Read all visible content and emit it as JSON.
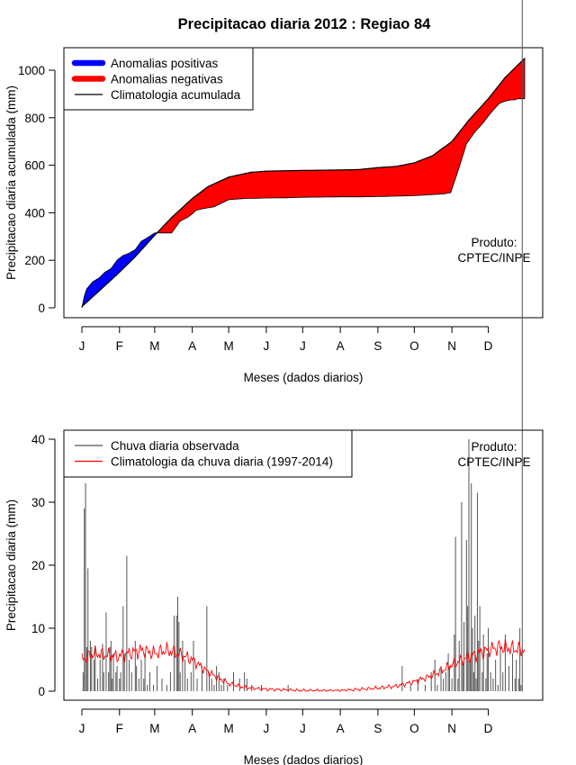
{
  "page": {
    "title": "Precipitacao diaria 2012 : Regiao 84"
  },
  "colors": {
    "positive": "#0000FF",
    "negative": "#FF0000",
    "climatology_line": "#000000",
    "bars": "#555555",
    "clim_daily": "#FF0000"
  },
  "chart_data": [
    {
      "type": "area",
      "title": "Precipitacao diaria 2012 : Regiao 84",
      "xlabel": "Meses (dados diarios)",
      "ylabel": "Precipitacao diaria acumulada (mm)",
      "xlim": [
        1,
        366
      ],
      "ylim": [
        0,
        1050
      ],
      "yticks": [
        0,
        200,
        400,
        600,
        800,
        1000
      ],
      "month_ticks": [
        1,
        32,
        61,
        92,
        122,
        153,
        183,
        214,
        245,
        275,
        306,
        336
      ],
      "month_labels": [
        "J",
        "F",
        "M",
        "A",
        "M",
        "J",
        "J",
        "A",
        "S",
        "O",
        "N",
        "D"
      ],
      "legend": [
        {
          "label": "Anomalias positivas",
          "kind": "thick",
          "color_key": "positive"
        },
        {
          "label": "Anomalias negativas",
          "kind": "thick",
          "color_key": "negative"
        },
        {
          "label": "Climatologia acumulada",
          "kind": "line",
          "color_key": "climatology_line"
        }
      ],
      "legend_position": "top-left",
      "annotation": [
        "Produto:",
        "CPTEC/INPE"
      ],
      "climatology_cumulative": {
        "day": [
          1,
          15,
          30,
          45,
          60,
          75,
          92,
          105,
          122,
          140,
          153,
          170,
          183,
          200,
          214,
          230,
          245,
          260,
          275,
          290,
          306,
          320,
          336,
          350,
          366
        ],
        "value": [
          5,
          70,
          140,
          215,
          300,
          380,
          460,
          510,
          550,
          570,
          575,
          577,
          578,
          579,
          580,
          582,
          590,
          595,
          610,
          640,
          700,
          790,
          880,
          970,
          1050
        ]
      },
      "observed_cumulative": {
        "day": [
          1,
          3,
          5,
          10,
          15,
          20,
          25,
          30,
          35,
          40,
          45,
          50,
          55,
          61,
          66,
          75,
          82,
          88,
          92,
          95,
          99,
          104,
          110,
          116,
          122,
          135,
          153,
          170,
          183,
          200,
          214,
          230,
          245,
          260,
          275,
          285,
          295,
          300,
          305,
          310,
          318,
          325,
          332,
          338,
          345,
          350,
          355,
          358,
          360,
          364,
          366
        ],
        "value": [
          0,
          50,
          80,
          110,
          125,
          150,
          165,
          200,
          220,
          230,
          245,
          280,
          295,
          315,
          315,
          315,
          365,
          380,
          395,
          410,
          415,
          420,
          425,
          440,
          455,
          460,
          462,
          463,
          465,
          466,
          467,
          467,
          468,
          470,
          472,
          475,
          478,
          480,
          485,
          560,
          690,
          740,
          780,
          820,
          860,
          870,
          875,
          875,
          880,
          880,
          880
        ]
      }
    },
    {
      "type": "bar",
      "title": "",
      "xlabel": "Meses (dados diarios)",
      "ylabel": "Precipitacao diaria (mm)",
      "xlim": [
        1,
        366
      ],
      "ylim": [
        0,
        40
      ],
      "yticks": [
        0,
        10,
        20,
        30,
        40
      ],
      "month_ticks": [
        1,
        32,
        61,
        92,
        122,
        153,
        183,
        214,
        245,
        275,
        306,
        336
      ],
      "month_labels": [
        "J",
        "F",
        "M",
        "A",
        "M",
        "J",
        "J",
        "A",
        "S",
        "O",
        "N",
        "D"
      ],
      "legend": [
        {
          "label": "Chuva diaria observada",
          "kind": "line",
          "color_key": "bars"
        },
        {
          "label": "Climatologia da chuva diaria (1997-2014)",
          "kind": "line",
          "color_key": "clim_daily"
        }
      ],
      "legend_position": "top-left",
      "annotation": [
        "Produto:",
        "CPTEC/INPE"
      ],
      "observed_daily": {
        "day": [
          2,
          3,
          4,
          5,
          6,
          8,
          9,
          11,
          12,
          14,
          16,
          18,
          19,
          21,
          23,
          24,
          25,
          26,
          27,
          29,
          30,
          32,
          33,
          35,
          36,
          38,
          40,
          42,
          45,
          46,
          48,
          50,
          52,
          53,
          55,
          57,
          60,
          63,
          67,
          71,
          74,
          77,
          79,
          80,
          81,
          82,
          84,
          86,
          88,
          91,
          93,
          96,
          100,
          104,
          106,
          108,
          110,
          112,
          114,
          116,
          118,
          121,
          126,
          131,
          135,
          137,
          141,
          149,
          171,
          265,
          272,
          278,
          284,
          289,
          292,
          294,
          297,
          299,
          301,
          303,
          304,
          306,
          308,
          309,
          311,
          312,
          314,
          315,
          316,
          318,
          319,
          320,
          321,
          322,
          323,
          324,
          325,
          326,
          327,
          328,
          329,
          331,
          332,
          334,
          335,
          336,
          338,
          340,
          342,
          344,
          346,
          348,
          350,
          353,
          356,
          358,
          359,
          361,
          362,
          363,
          364
        ],
        "value": [
          3,
          29,
          33,
          7,
          19.5,
          8,
          7,
          5,
          7,
          2,
          5,
          7.5,
          3,
          12.5,
          3,
          7,
          8,
          2,
          6,
          3,
          4,
          2,
          3,
          13.5,
          6,
          21.5,
          5,
          3,
          8,
          4,
          2,
          5,
          2,
          6,
          1,
          3,
          1,
          4,
          2,
          1,
          3,
          12,
          12,
          15,
          11,
          3,
          8,
          5,
          2,
          3,
          8,
          2,
          4,
          13.5,
          3,
          2,
          1,
          4,
          3,
          1,
          2,
          1,
          3,
          2,
          3,
          2,
          1,
          1,
          1,
          4,
          1,
          2,
          1,
          3,
          5,
          1,
          4,
          2,
          3,
          6,
          4,
          2,
          9,
          24.5,
          2,
          8,
          30,
          4,
          11,
          24,
          13.5,
          40,
          5,
          33,
          10,
          3,
          12,
          2,
          31.5,
          8,
          13.5,
          3,
          9,
          2,
          6,
          10,
          3,
          2,
          5,
          1,
          7,
          3,
          9,
          4,
          6,
          2,
          5,
          2,
          10,
          1
        ]
      },
      "climatology_daily": {
        "day": [
          1,
          10,
          20,
          30,
          40,
          50,
          60,
          70,
          80,
          92,
          105,
          122,
          135,
          153,
          170,
          183,
          200,
          214,
          230,
          245,
          260,
          275,
          290,
          300,
          306,
          315,
          325,
          336,
          345,
          355,
          366
        ],
        "value": [
          5,
          6,
          5.8,
          5.5,
          6,
          6.5,
          6,
          6.5,
          6,
          5,
          3,
          1.2,
          0.6,
          0.3,
          0.2,
          0.1,
          0.1,
          0.1,
          0.3,
          0.5,
          0.8,
          1.5,
          2.5,
          3.5,
          4.2,
          5,
          5.8,
          6.5,
          7,
          6.8,
          6.5
        ]
      }
    }
  ]
}
